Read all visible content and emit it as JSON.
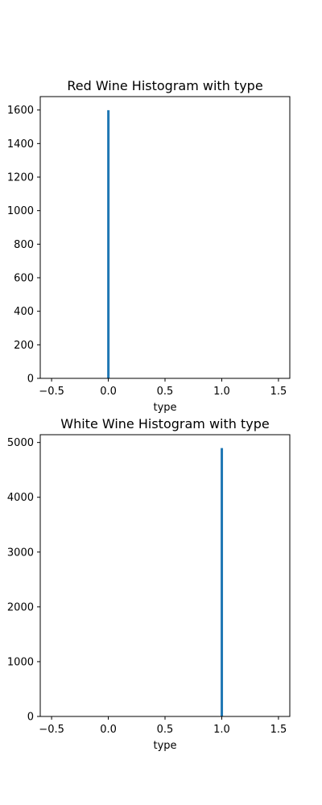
{
  "chart_data": [
    {
      "type": "bar",
      "title": "Red Wine Histogram with type",
      "xlabel": "type",
      "ylabel": "",
      "xlim": [
        -0.6,
        1.6
      ],
      "ylim": [
        0,
        1680
      ],
      "xticks": [
        -0.5,
        0.0,
        0.5,
        1.0,
        1.5
      ],
      "xtick_labels": [
        "−0.5",
        "0.0",
        "0.5",
        "1.0",
        "1.5"
      ],
      "yticks": [
        0,
        200,
        400,
        600,
        800,
        1000,
        1200,
        1400,
        1600
      ],
      "ytick_labels": [
        "0",
        "200",
        "400",
        "600",
        "800",
        "1000",
        "1200",
        "1400",
        "1600"
      ],
      "bins": [
        {
          "x": 0.0,
          "width": 0.02,
          "count": 1599
        }
      ],
      "color": "#1f77b4",
      "grid": false
    },
    {
      "type": "bar",
      "title": "White Wine Histogram with type",
      "xlabel": "type",
      "ylabel": "",
      "xlim": [
        -0.6,
        1.6
      ],
      "ylim": [
        0,
        5142
      ],
      "xticks": [
        -0.5,
        0.0,
        0.5,
        1.0,
        1.5
      ],
      "xtick_labels": [
        "−0.5",
        "0.0",
        "0.5",
        "1.0",
        "1.5"
      ],
      "yticks": [
        0,
        1000,
        2000,
        3000,
        4000,
        5000
      ],
      "ytick_labels": [
        "0",
        "1000",
        "2000",
        "3000",
        "4000",
        "5000"
      ],
      "bins": [
        {
          "x": 1.0,
          "width": 0.02,
          "count": 4898
        }
      ],
      "color": "#1f77b4",
      "grid": false
    }
  ]
}
